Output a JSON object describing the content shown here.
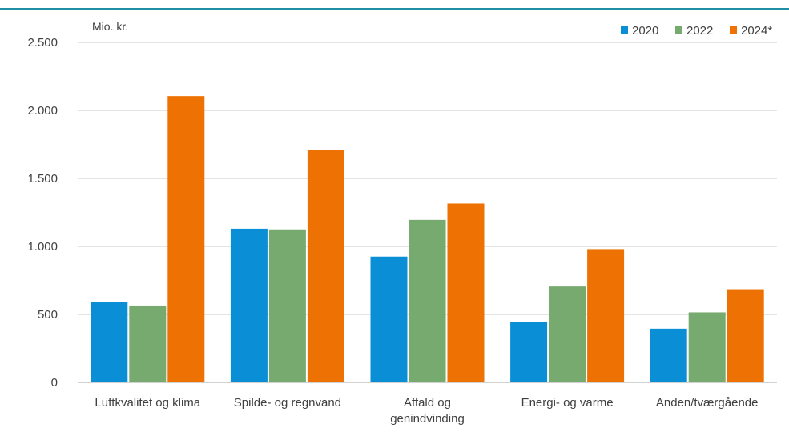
{
  "chart_data": {
    "type": "bar",
    "unit_label": "Mio. kr.",
    "categories": [
      [
        "Luftkvalitet og klima"
      ],
      [
        "Spilde- og regnvand"
      ],
      [
        "Affald og",
        "genindvinding"
      ],
      [
        "Energi- og varme"
      ],
      [
        "Anden/tværgående"
      ]
    ],
    "series": [
      {
        "name": "2020",
        "color": "#0a8fd6",
        "values": [
          590,
          1130,
          925,
          445,
          395
        ]
      },
      {
        "name": "2022",
        "color": "#76aa6e",
        "values": [
          565,
          1125,
          1195,
          705,
          515
        ]
      },
      {
        "name": "2024*",
        "color": "#ee7203",
        "values": [
          2105,
          1710,
          1315,
          980,
          685
        ]
      }
    ],
    "y_ticks": [
      {
        "value": 0,
        "label": "0"
      },
      {
        "value": 500,
        "label": "500"
      },
      {
        "value": 1000,
        "label": "1.000"
      },
      {
        "value": 1500,
        "label": "1.500"
      },
      {
        "value": 2000,
        "label": "2.000"
      },
      {
        "value": 2500,
        "label": "2.500"
      }
    ],
    "ylim": [
      0,
      2500
    ],
    "grid": true,
    "legend_position": "top-right"
  }
}
